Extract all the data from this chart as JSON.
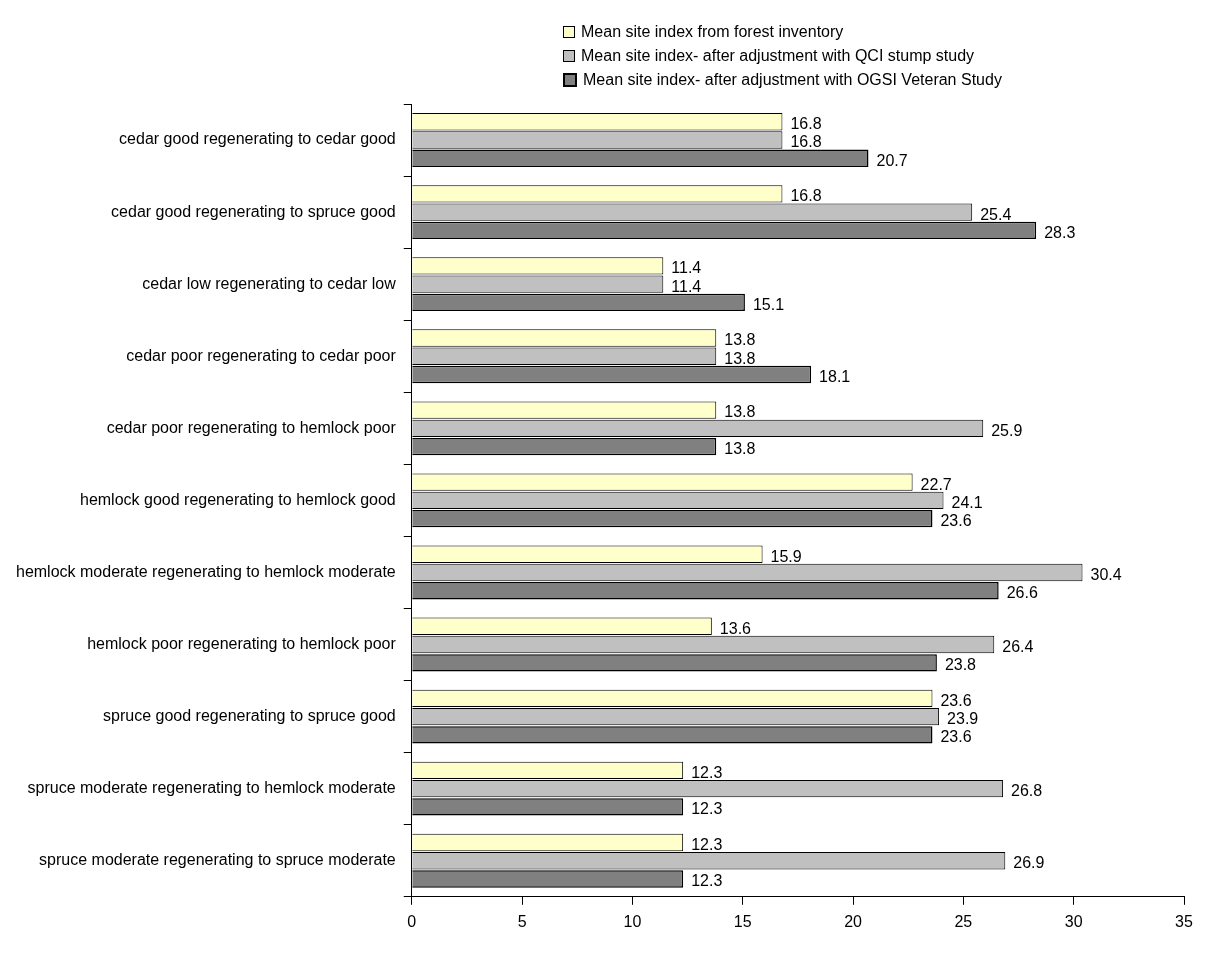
{
  "chart_data": {
    "type": "bar",
    "orientation": "horizontal",
    "categories": [
      "cedar good regenerating to cedar good",
      "cedar good regenerating to spruce good",
      "cedar low regenerating to cedar low",
      "cedar poor regenerating to cedar poor",
      "cedar poor regenerating to hemlock poor",
      "hemlock good regenerating to hemlock good",
      "hemlock moderate regenerating to hemlock moderate",
      "hemlock poor regenerating to hemlock poor",
      "spruce good regenerating to spruce good",
      "spruce moderate regenerating to hemlock moderate",
      "spruce moderate regenerating to spruce moderate"
    ],
    "series": [
      {
        "name": "Mean site index from forest inventory",
        "color": "#ffffcc",
        "values": [
          16.8,
          16.8,
          11.4,
          13.8,
          13.8,
          22.7,
          15.9,
          13.6,
          23.6,
          12.3,
          12.3
        ]
      },
      {
        "name": "Mean site index- after adjustment with QCI stump study",
        "color": "#c0c0c0",
        "values": [
          16.8,
          25.4,
          11.4,
          13.8,
          25.9,
          24.1,
          30.4,
          26.4,
          23.9,
          26.8,
          26.9
        ]
      },
      {
        "name": "Mean site index- after adjustment with OGSI Veteran Study",
        "color": "#808080",
        "values": [
          20.7,
          28.3,
          15.1,
          18.1,
          13.8,
          23.6,
          26.6,
          23.8,
          23.6,
          12.3,
          12.3
        ]
      }
    ],
    "xlim": [
      0,
      35
    ],
    "xticks": [
      0,
      5,
      10,
      15,
      20,
      25,
      30,
      35
    ],
    "grid": false,
    "legend": "top",
    "data_labels": true
  }
}
